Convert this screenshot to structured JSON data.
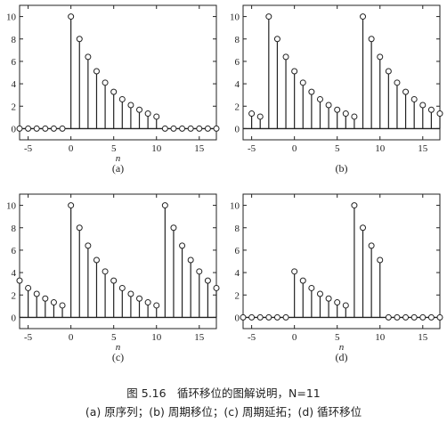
{
  "caption": {
    "line1": "图 5.16　循环移位的图解说明，N=11",
    "line2": "(a) 原序列；(b) 周期移位；(c) 周期延拓；(d) 循环移位"
  },
  "chart_data": [
    {
      "type": "stem",
      "panel_label": "(a)",
      "xlabel": "n",
      "xlim": [
        -6,
        17
      ],
      "ylim": [
        -1,
        11
      ],
      "xticks": [
        -5,
        0,
        5,
        10,
        15
      ],
      "yticks": [
        0,
        2,
        4,
        6,
        8,
        10
      ],
      "x": [
        -6,
        -5,
        -4,
        -3,
        -2,
        -1,
        0,
        1,
        2,
        3,
        4,
        5,
        6,
        7,
        8,
        9,
        10,
        11,
        12,
        13,
        14,
        15,
        16,
        17
      ],
      "y": [
        0,
        0,
        0,
        0,
        0,
        0,
        10,
        8,
        6.4,
        5.12,
        4.1,
        3.28,
        2.62,
        2.1,
        1.68,
        1.34,
        1.07,
        0,
        0,
        0,
        0,
        0,
        0,
        0
      ]
    },
    {
      "type": "stem",
      "panel_label": "(b)",
      "xlabel": "",
      "xlim": [
        -6,
        17
      ],
      "ylim": [
        -1,
        11
      ],
      "xticks": [
        -5,
        0,
        5,
        10,
        15
      ],
      "yticks": [
        0,
        2,
        4,
        6,
        8,
        10
      ],
      "x": [
        -5,
        -4,
        -3,
        -2,
        -1,
        0,
        1,
        2,
        3,
        4,
        5,
        6,
        7,
        8,
        9,
        10,
        11,
        12,
        13,
        14,
        15,
        16,
        17
      ],
      "y": [
        1.34,
        1.07,
        10,
        8,
        6.4,
        5.12,
        4.1,
        3.28,
        2.62,
        2.1,
        1.68,
        1.34,
        1.07,
        10,
        8,
        6.4,
        5.12,
        4.1,
        3.28,
        2.62,
        2.1,
        1.68,
        1.34
      ]
    },
    {
      "type": "stem",
      "panel_label": "(c)",
      "xlabel": "n",
      "xlim": [
        -6,
        17
      ],
      "ylim": [
        -1,
        11
      ],
      "xticks": [
        -5,
        0,
        5,
        10,
        15
      ],
      "yticks": [
        0,
        2,
        4,
        6,
        8,
        10
      ],
      "x": [
        -6,
        -5,
        -4,
        -3,
        -2,
        -1,
        0,
        1,
        2,
        3,
        4,
        5,
        6,
        7,
        8,
        9,
        10,
        11,
        12,
        13,
        14,
        15,
        16,
        17
      ],
      "y": [
        3.28,
        2.62,
        2.1,
        1.68,
        1.34,
        1.07,
        10,
        8,
        6.4,
        5.12,
        4.1,
        3.28,
        2.62,
        2.1,
        1.68,
        1.34,
        1.07,
        10,
        8,
        6.4,
        5.12,
        4.1,
        3.28,
        2.62
      ]
    },
    {
      "type": "stem",
      "panel_label": "(d)",
      "xlabel": "n",
      "xlim": [
        -6,
        17
      ],
      "ylim": [
        -1,
        11
      ],
      "xticks": [
        -5,
        0,
        5,
        10,
        15
      ],
      "yticks": [
        0,
        2,
        4,
        6,
        8,
        10
      ],
      "x": [
        -6,
        -5,
        -4,
        -3,
        -2,
        -1,
        0,
        1,
        2,
        3,
        4,
        5,
        6,
        7,
        8,
        9,
        10,
        11,
        12,
        13,
        14,
        15,
        16,
        17
      ],
      "y": [
        0,
        0,
        0,
        0,
        0,
        0,
        4.1,
        3.28,
        2.62,
        2.1,
        1.68,
        1.34,
        1.07,
        10,
        8,
        6.4,
        5.12,
        0,
        0,
        0,
        0,
        0,
        0,
        0
      ]
    }
  ]
}
